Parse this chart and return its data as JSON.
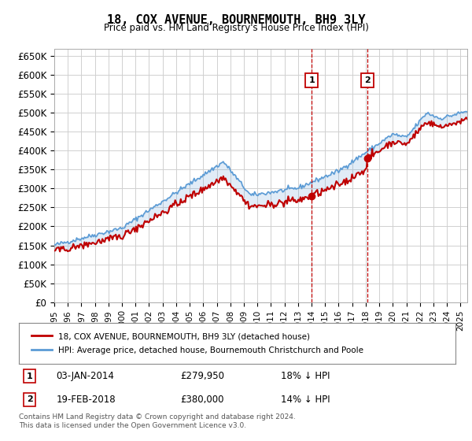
{
  "title": "18, COX AVENUE, BOURNEMOUTH, BH9 3LY",
  "subtitle": "Price paid vs. HM Land Registry's House Price Index (HPI)",
  "ylabel_ticks": [
    "£0",
    "£50K",
    "£100K",
    "£150K",
    "£200K",
    "£250K",
    "£300K",
    "£350K",
    "£400K",
    "£450K",
    "£500K",
    "£550K",
    "£600K",
    "£650K"
  ],
  "ylim": [
    0,
    670000
  ],
  "xlim_start": 1995.0,
  "xlim_end": 2025.5,
  "hpi_color": "#5b9bd5",
  "price_color": "#c00000",
  "marker_color": "#c00000",
  "sale1_date": "03-JAN-2014",
  "sale1_price": 279950,
  "sale1_x": 2014.01,
  "sale2_date": "19-FEB-2018",
  "sale2_price": 380000,
  "sale2_x": 2018.12,
  "legend_line1": "18, COX AVENUE, BOURNEMOUTH, BH9 3LY (detached house)",
  "legend_line2": "HPI: Average price, detached house, Bournemouth Christchurch and Poole",
  "footnote": "Contains HM Land Registry data © Crown copyright and database right 2024.\nThis data is licensed under the Open Government Licence v3.0.",
  "bg_color": "#ffffff",
  "plot_bg_color": "#ffffff",
  "grid_color": "#d0d0d0"
}
